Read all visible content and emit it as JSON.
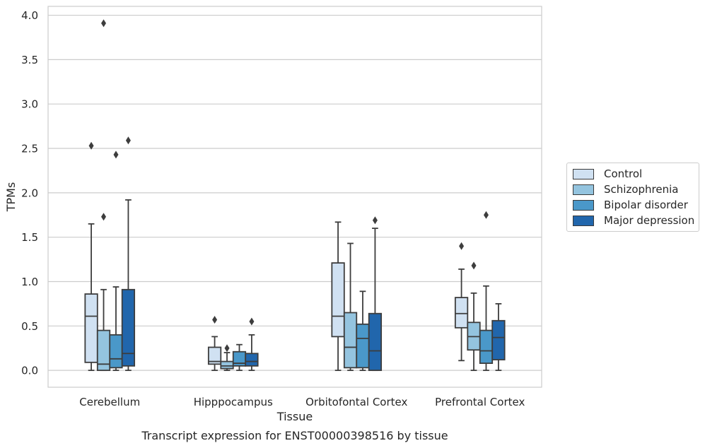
{
  "chart_data": {
    "type": "boxplot",
    "xlabel": "Tissue",
    "ylabel": "TPMs",
    "caption": "Transcript expression for ENST00000398516 by tissue",
    "ylim": [
      -0.19,
      4.1
    ],
    "yticks": [
      "0.0",
      "0.5",
      "1.0",
      "1.5",
      "2.0",
      "2.5",
      "3.0",
      "3.5",
      "4.0"
    ],
    "grid": true,
    "legend_position": "right",
    "categories": [
      "Cerebellum",
      "Hipppocampus",
      "Orbitofontal Cortex",
      "Prefrontal Cortex"
    ],
    "series": [
      {
        "name": "Control",
        "color": "#d0e1f2",
        "boxes": [
          {
            "min": 0.0,
            "q1": 0.09,
            "median": 0.61,
            "q3": 0.86,
            "max": 1.65,
            "outliers": [
              2.53
            ]
          },
          {
            "min": 0.0,
            "q1": 0.07,
            "median": 0.1,
            "q3": 0.26,
            "max": 0.38,
            "outliers": [
              0.57
            ]
          },
          {
            "min": 0.0,
            "q1": 0.38,
            "median": 0.61,
            "q3": 1.21,
            "max": 1.67,
            "outliers": []
          },
          {
            "min": 0.11,
            "q1": 0.48,
            "median": 0.64,
            "q3": 0.82,
            "max": 1.14,
            "outliers": [
              1.4
            ]
          }
        ]
      },
      {
        "name": "Schizophrenia",
        "color": "#94c4df",
        "boxes": [
          {
            "min": 0.0,
            "q1": 0.0,
            "median": 0.07,
            "q3": 0.45,
            "max": 0.91,
            "outliers": [
              1.73,
              3.91
            ]
          },
          {
            "min": 0.0,
            "q1": 0.02,
            "median": 0.05,
            "q3": 0.1,
            "max": 0.2,
            "outliers": [
              0.25
            ]
          },
          {
            "min": 0.0,
            "q1": 0.03,
            "median": 0.26,
            "q3": 0.65,
            "max": 1.43,
            "outliers": []
          },
          {
            "min": 0.0,
            "q1": 0.23,
            "median": 0.38,
            "q3": 0.54,
            "max": 0.87,
            "outliers": [
              1.18
            ]
          }
        ]
      },
      {
        "name": "Bipolar disorder",
        "color": "#4a98c9",
        "boxes": [
          {
            "min": 0.0,
            "q1": 0.03,
            "median": 0.13,
            "q3": 0.4,
            "max": 0.94,
            "outliers": [
              2.43
            ]
          },
          {
            "min": 0.0,
            "q1": 0.05,
            "median": 0.08,
            "q3": 0.21,
            "max": 0.29,
            "outliers": []
          },
          {
            "min": 0.0,
            "q1": 0.03,
            "median": 0.36,
            "q3": 0.52,
            "max": 0.89,
            "outliers": []
          },
          {
            "min": 0.0,
            "q1": 0.08,
            "median": 0.22,
            "q3": 0.45,
            "max": 0.95,
            "outliers": [
              1.75
            ]
          }
        ]
      },
      {
        "name": "Major depression",
        "color": "#2166ac",
        "boxes": [
          {
            "min": 0.0,
            "q1": 0.05,
            "median": 0.19,
            "q3": 0.91,
            "max": 1.92,
            "outliers": [
              2.59
            ]
          },
          {
            "min": 0.0,
            "q1": 0.05,
            "median": 0.1,
            "q3": 0.19,
            "max": 0.4,
            "outliers": [
              0.55
            ]
          },
          {
            "min": 0.0,
            "q1": 0.0,
            "median": 0.22,
            "q3": 0.64,
            "max": 1.6,
            "outliers": [
              1.69
            ]
          },
          {
            "min": 0.0,
            "q1": 0.12,
            "median": 0.37,
            "q3": 0.56,
            "max": 0.75,
            "outliers": []
          }
        ]
      }
    ]
  }
}
